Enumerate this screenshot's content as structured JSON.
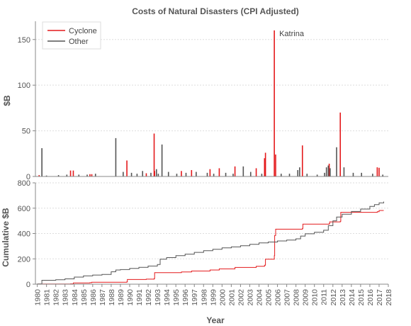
{
  "chart_data": [
    {
      "type": "bar",
      "title": "Costs of Natural Disasters (CPI Adjusted)",
      "ylabel": "$B",
      "xlabel": "",
      "ylim": [
        0,
        170
      ],
      "xlim": [
        1979.8,
        2018
      ],
      "yticks": [
        0,
        50,
        100,
        150
      ],
      "grid": true,
      "legend": {
        "placement": "top-left",
        "entries": [
          {
            "label": "Cyclone",
            "color": "#e41a1c"
          },
          {
            "label": "Other",
            "color": "#555555"
          }
        ]
      },
      "annotations": [
        {
          "text": "Katrina",
          "x": 2005.66,
          "y": 160
        }
      ],
      "series": [
        {
          "name": "Cyclone",
          "color": "#e41a1c",
          "points": [
            [
              1980.2,
              1.5
            ],
            [
              1983.6,
              6.5
            ],
            [
              1983.9,
              6.5
            ],
            [
              1985.7,
              2.5
            ],
            [
              1985.9,
              2.5
            ],
            [
              1989.7,
              17.5
            ],
            [
              1991.8,
              3.5
            ],
            [
              1992.65,
              47
            ],
            [
              1992.7,
              6
            ],
            [
              1995.6,
              6
            ],
            [
              1996.7,
              7
            ],
            [
              1998.7,
              8
            ],
            [
              1999.7,
              9
            ],
            [
              2001.4,
              11
            ],
            [
              2003.7,
              9
            ],
            [
              2004.6,
              20
            ],
            [
              2004.7,
              26
            ],
            [
              2005.66,
              160
            ],
            [
              2005.8,
              24
            ],
            [
              2008.7,
              34
            ],
            [
              2011.6,
              14
            ],
            [
              2012.8,
              70
            ],
            [
              2016.8,
              10
            ],
            [
              2017.0,
              9.5
            ]
          ]
        },
        {
          "name": "Other",
          "color": "#555555",
          "points": [
            [
              1980.5,
              31
            ],
            [
              1981.0,
              1
            ],
            [
              1982.3,
              1.5
            ],
            [
              1983.2,
              2
            ],
            [
              1984.5,
              2
            ],
            [
              1985.4,
              2
            ],
            [
              1986.3,
              3
            ],
            [
              1988.5,
              42
            ],
            [
              1989.3,
              5
            ],
            [
              1990.2,
              4
            ],
            [
              1990.8,
              3
            ],
            [
              1991.4,
              6
            ],
            [
              1992.3,
              4
            ],
            [
              1992.9,
              8
            ],
            [
              1993.5,
              35
            ],
            [
              1993.1,
              3
            ],
            [
              1994.2,
              5
            ],
            [
              1995.1,
              3
            ],
            [
              1996.1,
              4
            ],
            [
              1997.2,
              5
            ],
            [
              1998.4,
              4
            ],
            [
              1999.1,
              3
            ],
            [
              2000.4,
              4
            ],
            [
              2001.2,
              3
            ],
            [
              2002.3,
              11
            ],
            [
              2003.1,
              5
            ],
            [
              2004.3,
              3
            ],
            [
              2006.4,
              3
            ],
            [
              2007.3,
              3
            ],
            [
              2008.2,
              7
            ],
            [
              2008.4,
              10
            ],
            [
              2009.2,
              3
            ],
            [
              2010.3,
              2
            ],
            [
              2011.1,
              4
            ],
            [
              2011.3,
              10
            ],
            [
              2011.5,
              12
            ],
            [
              2011.7,
              9
            ],
            [
              2012.4,
              32
            ],
            [
              2013.2,
              10
            ],
            [
              2014.2,
              4
            ],
            [
              2015.1,
              4
            ],
            [
              2016.3,
              3
            ],
            [
              2017.4,
              2
            ]
          ]
        }
      ]
    },
    {
      "type": "line",
      "title": "",
      "xlabel": "Year",
      "ylabel": "Cumulative $B",
      "ylim": [
        0,
        800
      ],
      "xlim": [
        1979.8,
        2018
      ],
      "yticks": [
        0,
        200,
        400,
        600,
        800
      ],
      "xticks": [
        "1980",
        "1981",
        "1982",
        "1983",
        "1984",
        "1985",
        "1986",
        "1987",
        "1988",
        "1989",
        "1990",
        "1991",
        "1992",
        "1993",
        "1994",
        "1995",
        "1996",
        "1997",
        "1998",
        "1999",
        "2000",
        "2001",
        "2002",
        "2003",
        "2004",
        "2005",
        "2006",
        "2007",
        "2008",
        "2009",
        "2010",
        "2011",
        "2012",
        "2013",
        "2014",
        "2015",
        "2016",
        "2017",
        "2018"
      ],
      "grid": true,
      "series": [
        {
          "name": "Cyclone",
          "color": "#e41a1c",
          "points": [
            [
              1980.0,
              1
            ],
            [
              1983.6,
              3
            ],
            [
              1983.9,
              10
            ],
            [
              1985.7,
              12
            ],
            [
              1985.9,
              15
            ],
            [
              1989.7,
              19
            ],
            [
              1989.75,
              37
            ],
            [
              1991.8,
              40
            ],
            [
              1992.65,
              44
            ],
            [
              1992.7,
              91
            ],
            [
              1995.6,
              97
            ],
            [
              1996.7,
              104
            ],
            [
              1998.7,
              112
            ],
            [
              1999.7,
              121
            ],
            [
              2001.4,
              132
            ],
            [
              2003.7,
              141
            ],
            [
              2004.6,
              150
            ],
            [
              2004.7,
              197
            ],
            [
              2005.66,
              225
            ],
            [
              2005.7,
              385
            ],
            [
              2005.8,
              434
            ],
            [
              2008.7,
              440
            ],
            [
              2008.75,
              474
            ],
            [
              2011.6,
              478
            ],
            [
              2011.65,
              492
            ],
            [
              2012.8,
              497
            ],
            [
              2012.85,
              567
            ],
            [
              2016.8,
              572
            ],
            [
              2017.0,
              582
            ],
            [
              2017.5,
              582
            ]
          ]
        },
        {
          "name": "Other",
          "color": "#555555",
          "points": [
            [
              1980.0,
              2
            ],
            [
              1980.5,
              31
            ],
            [
              1982.0,
              35
            ],
            [
              1983.0,
              42
            ],
            [
              1984.0,
              56
            ],
            [
              1985.0,
              66
            ],
            [
              1986.0,
              72
            ],
            [
              1987.0,
              77
            ],
            [
              1988.0,
              98
            ],
            [
              1988.5,
              112
            ],
            [
              1989.0,
              115
            ],
            [
              1990.0,
              124
            ],
            [
              1991.0,
              133
            ],
            [
              1992.0,
              143
            ],
            [
              1993.0,
              155
            ],
            [
              1993.3,
              197
            ],
            [
              1994.0,
              210
            ],
            [
              1995.0,
              225
            ],
            [
              1996.0,
              237
            ],
            [
              1997.0,
              251
            ],
            [
              1998.0,
              264
            ],
            [
              1999.0,
              276
            ],
            [
              2000.0,
              287
            ],
            [
              2001.0,
              294
            ],
            [
              2002.0,
              303
            ],
            [
              2003.0,
              315
            ],
            [
              2004.0,
              326
            ],
            [
              2005.0,
              333
            ],
            [
              2006.0,
              341
            ],
            [
              2007.0,
              348
            ],
            [
              2008.0,
              358
            ],
            [
              2008.5,
              380
            ],
            [
              2009.0,
              398
            ],
            [
              2010.0,
              410
            ],
            [
              2011.0,
              426
            ],
            [
              2011.5,
              462
            ],
            [
              2012.0,
              500
            ],
            [
              2012.4,
              530
            ],
            [
              2013.0,
              552
            ],
            [
              2014.0,
              574
            ],
            [
              2015.0,
              593
            ],
            [
              2016.0,
              614
            ],
            [
              2016.5,
              628
            ],
            [
              2017.0,
              642
            ],
            [
              2017.5,
              652
            ]
          ]
        }
      ]
    }
  ]
}
